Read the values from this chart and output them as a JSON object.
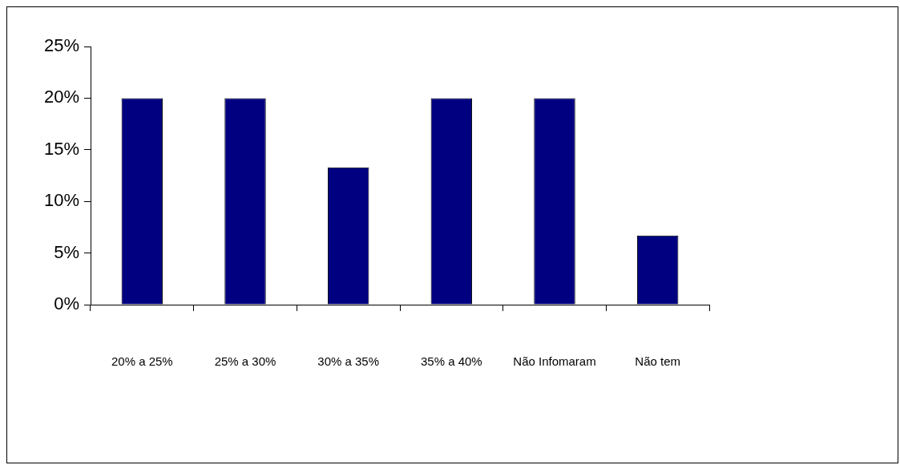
{
  "chart_data": {
    "type": "bar",
    "categories": [
      "20% a 25%",
      "25% a 30%",
      "30% a 35%",
      "35% a 40%",
      "Não Infomaram",
      "Não tem"
    ],
    "values": [
      20,
      20,
      13.3,
      20,
      20,
      6.7
    ],
    "color": "#000080",
    "ylim": [
      0,
      25
    ],
    "yticks": [
      {
        "value": 0,
        "label": "0%"
      },
      {
        "value": 5,
        "label": "5%"
      },
      {
        "value": 10,
        "label": "10%"
      },
      {
        "value": 15,
        "label": "15%"
      },
      {
        "value": 20,
        "label": "20%"
      },
      {
        "value": 25,
        "label": "25%"
      }
    ],
    "grid": false,
    "legend": false
  }
}
